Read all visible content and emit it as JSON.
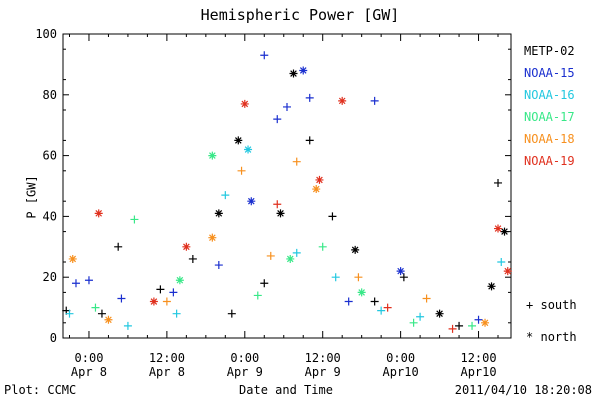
{
  "chart_data": {
    "type": "scatter",
    "title": "Hemispheric Power [GW]",
    "ylabel": "P [GW]",
    "xlabel": "Date and Time",
    "ylim": [
      0,
      100
    ],
    "xlim": [
      "2011-04-07 20:00",
      "2011-04-10 17:00"
    ],
    "yticks": [
      "0",
      "20",
      "40",
      "60",
      "80",
      "100"
    ],
    "xticks": [
      {
        "x": "2011-04-08 00:00",
        "time": "0:00",
        "date": "Apr 8"
      },
      {
        "x": "2011-04-08 12:00",
        "time": "12:00",
        "date": "Apr 8"
      },
      {
        "x": "2011-04-09 00:00",
        "time": "0:00",
        "date": "Apr 9"
      },
      {
        "x": "2011-04-09 12:00",
        "time": "12:00",
        "date": "Apr 9"
      },
      {
        "x": "2011-04-10 00:00",
        "time": "0:00",
        "date": "Apr10"
      },
      {
        "x": "2011-04-10 12:00",
        "time": "12:00",
        "date": "Apr10"
      }
    ],
    "grid": false,
    "legend_position": "right",
    "marker_legend": [
      {
        "symbol": "+",
        "label": "south"
      },
      {
        "symbol": "*",
        "label": "north"
      }
    ],
    "series": [
      {
        "name": "METP-02",
        "color": "#000000",
        "points": [
          {
            "x": "2011-04-07 20:30",
            "y": 9,
            "m": "plus"
          },
          {
            "x": "2011-04-08 02:00",
            "y": 8,
            "m": "plus"
          },
          {
            "x": "2011-04-08 04:30",
            "y": 30,
            "m": "plus"
          },
          {
            "x": "2011-04-08 11:00",
            "y": 16,
            "m": "plus"
          },
          {
            "x": "2011-04-08 16:00",
            "y": 26,
            "m": "plus"
          },
          {
            "x": "2011-04-08 20:00",
            "y": 41,
            "m": "star"
          },
          {
            "x": "2011-04-08 22:00",
            "y": 8,
            "m": "plus"
          },
          {
            "x": "2011-04-08 23:00",
            "y": 65,
            "m": "star"
          },
          {
            "x": "2011-04-09 03:00",
            "y": 18,
            "m": "plus"
          },
          {
            "x": "2011-04-09 05:30",
            "y": 41,
            "m": "star"
          },
          {
            "x": "2011-04-09 07:30",
            "y": 87,
            "m": "star"
          },
          {
            "x": "2011-04-09 10:00",
            "y": 65,
            "m": "plus"
          },
          {
            "x": "2011-04-09 13:30",
            "y": 40,
            "m": "plus"
          },
          {
            "x": "2011-04-09 17:00",
            "y": 29,
            "m": "star"
          },
          {
            "x": "2011-04-09 20:00",
            "y": 12,
            "m": "plus"
          },
          {
            "x": "2011-04-10 00:30",
            "y": 20,
            "m": "plus"
          },
          {
            "x": "2011-04-10 06:00",
            "y": 8,
            "m": "star"
          },
          {
            "x": "2011-04-10 09:00",
            "y": 4,
            "m": "plus"
          },
          {
            "x": "2011-04-10 14:00",
            "y": 17,
            "m": "star"
          },
          {
            "x": "2011-04-10 15:00",
            "y": 51,
            "m": "plus"
          },
          {
            "x": "2011-04-10 16:00",
            "y": 35,
            "m": "star"
          }
        ]
      },
      {
        "name": "NOAA-15",
        "color": "#1a2fcf",
        "points": [
          {
            "x": "2011-04-07 22:00",
            "y": 18,
            "m": "plus"
          },
          {
            "x": "2011-04-08 00:00",
            "y": 19,
            "m": "plus"
          },
          {
            "x": "2011-04-08 05:00",
            "y": 13,
            "m": "plus"
          },
          {
            "x": "2011-04-08 13:00",
            "y": 15,
            "m": "plus"
          },
          {
            "x": "2011-04-08 20:00",
            "y": 24,
            "m": "plus"
          },
          {
            "x": "2011-04-09 01:00",
            "y": 45,
            "m": "star"
          },
          {
            "x": "2011-04-09 03:00",
            "y": 93,
            "m": "plus"
          },
          {
            "x": "2011-04-09 05:00",
            "y": 72,
            "m": "plus"
          },
          {
            "x": "2011-04-09 06:30",
            "y": 76,
            "m": "plus"
          },
          {
            "x": "2011-04-09 09:00",
            "y": 88,
            "m": "star"
          },
          {
            "x": "2011-04-09 10:00",
            "y": 79,
            "m": "plus"
          },
          {
            "x": "2011-04-09 16:00",
            "y": 12,
            "m": "plus"
          },
          {
            "x": "2011-04-09 20:00",
            "y": 78,
            "m": "plus"
          },
          {
            "x": "2011-04-10 00:00",
            "y": 22,
            "m": "star"
          },
          {
            "x": "2011-04-10 12:00",
            "y": 6,
            "m": "plus"
          }
        ]
      },
      {
        "name": "NOAA-16",
        "color": "#22c8e0",
        "points": [
          {
            "x": "2011-04-07 21:00",
            "y": 8,
            "m": "plus"
          },
          {
            "x": "2011-04-08 06:00",
            "y": 4,
            "m": "plus"
          },
          {
            "x": "2011-04-08 13:30",
            "y": 8,
            "m": "plus"
          },
          {
            "x": "2011-04-08 21:00",
            "y": 47,
            "m": "plus"
          },
          {
            "x": "2011-04-09 00:30",
            "y": 62,
            "m": "star"
          },
          {
            "x": "2011-04-09 08:00",
            "y": 28,
            "m": "plus"
          },
          {
            "x": "2011-04-09 14:00",
            "y": 20,
            "m": "plus"
          },
          {
            "x": "2011-04-09 21:00",
            "y": 9,
            "m": "plus"
          },
          {
            "x": "2011-04-10 03:00",
            "y": 7,
            "m": "plus"
          },
          {
            "x": "2011-04-10 15:30",
            "y": 25,
            "m": "plus"
          }
        ]
      },
      {
        "name": "NOAA-17",
        "color": "#38e888",
        "points": [
          {
            "x": "2011-04-08 01:00",
            "y": 10,
            "m": "plus"
          },
          {
            "x": "2011-04-08 07:00",
            "y": 39,
            "m": "plus"
          },
          {
            "x": "2011-04-08 14:00",
            "y": 19,
            "m": "star"
          },
          {
            "x": "2011-04-08 19:00",
            "y": 60,
            "m": "star"
          },
          {
            "x": "2011-04-09 02:00",
            "y": 14,
            "m": "plus"
          },
          {
            "x": "2011-04-09 07:00",
            "y": 26,
            "m": "star"
          },
          {
            "x": "2011-04-09 12:00",
            "y": 30,
            "m": "plus"
          },
          {
            "x": "2011-04-09 18:00",
            "y": 15,
            "m": "star"
          },
          {
            "x": "2011-04-10 02:00",
            "y": 5,
            "m": "plus"
          },
          {
            "x": "2011-04-10 11:00",
            "y": 4,
            "m": "plus"
          }
        ]
      },
      {
        "name": "NOAA-18",
        "color": "#f7901e",
        "points": [
          {
            "x": "2011-04-07 21:30",
            "y": 26,
            "m": "star"
          },
          {
            "x": "2011-04-08 03:00",
            "y": 6,
            "m": "star"
          },
          {
            "x": "2011-04-08 12:00",
            "y": 12,
            "m": "plus"
          },
          {
            "x": "2011-04-08 19:00",
            "y": 33,
            "m": "star"
          },
          {
            "x": "2011-04-08 23:30",
            "y": 55,
            "m": "plus"
          },
          {
            "x": "2011-04-09 04:00",
            "y": 27,
            "m": "plus"
          },
          {
            "x": "2011-04-09 08:00",
            "y": 58,
            "m": "plus"
          },
          {
            "x": "2011-04-09 11:00",
            "y": 49,
            "m": "star"
          },
          {
            "x": "2011-04-09 17:30",
            "y": 20,
            "m": "plus"
          },
          {
            "x": "2011-04-10 04:00",
            "y": 13,
            "m": "plus"
          },
          {
            "x": "2011-04-10 13:00",
            "y": 5,
            "m": "star"
          }
        ]
      },
      {
        "name": "NOAA-19",
        "color": "#e0301e",
        "points": [
          {
            "x": "2011-04-08 01:30",
            "y": 41,
            "m": "star"
          },
          {
            "x": "2011-04-08 10:00",
            "y": 12,
            "m": "star"
          },
          {
            "x": "2011-04-08 15:00",
            "y": 30,
            "m": "star"
          },
          {
            "x": "2011-04-09 00:00",
            "y": 77,
            "m": "star"
          },
          {
            "x": "2011-04-09 05:00",
            "y": 44,
            "m": "plus"
          },
          {
            "x": "2011-04-09 11:30",
            "y": 52,
            "m": "star"
          },
          {
            "x": "2011-04-09 15:00",
            "y": 78,
            "m": "star"
          },
          {
            "x": "2011-04-09 22:00",
            "y": 10,
            "m": "plus"
          },
          {
            "x": "2011-04-10 08:00",
            "y": 3,
            "m": "plus"
          },
          {
            "x": "2011-04-10 15:00",
            "y": 36,
            "m": "star"
          },
          {
            "x": "2011-04-10 16:30",
            "y": 22,
            "m": "star"
          }
        ]
      }
    ]
  },
  "footer": {
    "plot_credit": "Plot: CCMC",
    "timestamp": "2011/04/10 18:20:08"
  }
}
